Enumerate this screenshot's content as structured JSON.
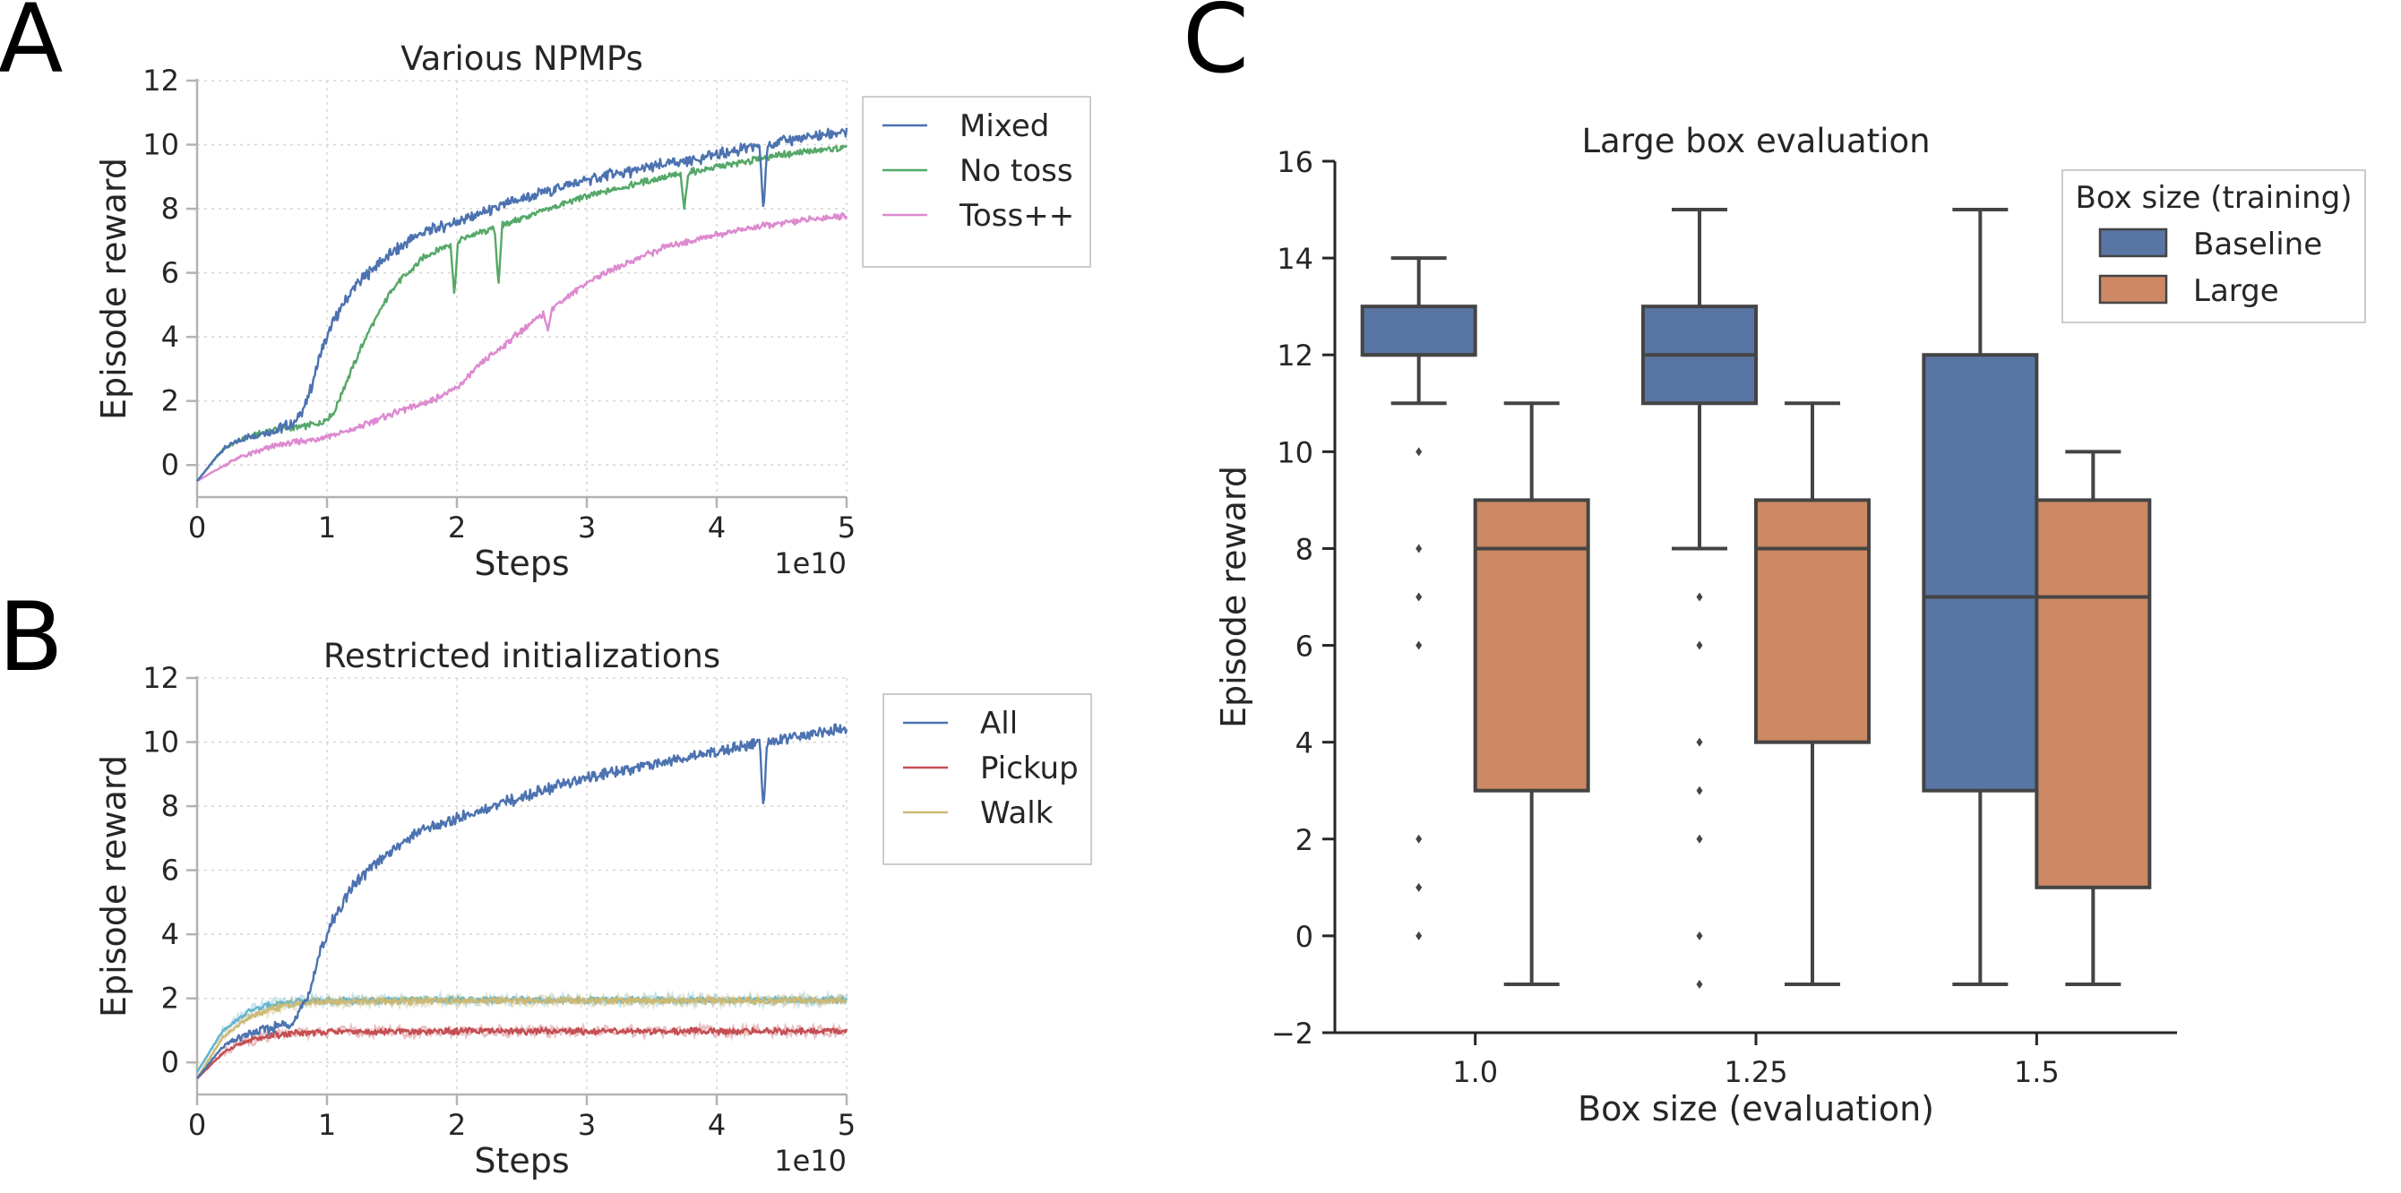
{
  "labels": {
    "A": "A",
    "B": "B",
    "C": "C"
  },
  "chart_data": [
    {
      "type": "line",
      "panel": "A",
      "title": "Various NPMPs",
      "xlabel": "Steps",
      "ylabel": "Episode reward",
      "x_offset_text": "1e10",
      "xlim": [
        0,
        5
      ],
      "ylim": [
        -1,
        12
      ],
      "xticks": [
        "0",
        "1",
        "2",
        "3",
        "4",
        "5"
      ],
      "yticks": [
        "0",
        "2",
        "4",
        "6",
        "8",
        "10",
        "12"
      ],
      "grid": true,
      "legend_position": "top-right",
      "series": [
        {
          "name": "Mixed",
          "color": "#4c72b0",
          "x": [
            0,
            0.2,
            0.4,
            0.6,
            0.75,
            0.85,
            0.95,
            1.05,
            1.2,
            1.4,
            1.7,
            2.0,
            2.5,
            3.0,
            3.5,
            4.0,
            4.5,
            5.0
          ],
          "y": [
            -0.5,
            0.5,
            0.9,
            1.1,
            1.3,
            2.0,
            3.5,
            4.5,
            5.5,
            6.3,
            7.2,
            7.6,
            8.3,
            8.9,
            9.3,
            9.7,
            10.1,
            10.4
          ],
          "dips": [
            {
              "x": 4.36,
              "y": 7.9
            }
          ]
        },
        {
          "name": "No toss",
          "color": "#55a868",
          "x": [
            0,
            0.2,
            0.4,
            0.6,
            0.8,
            0.95,
            1.05,
            1.15,
            1.3,
            1.5,
            1.75,
            2.0,
            2.5,
            3.0,
            3.5,
            4.0,
            4.5,
            5.0
          ],
          "y": [
            -0.5,
            0.5,
            0.9,
            1.1,
            1.2,
            1.3,
            1.6,
            2.6,
            4.0,
            5.5,
            6.5,
            7.0,
            7.7,
            8.4,
            8.9,
            9.3,
            9.7,
            9.9
          ],
          "dips": [
            {
              "x": 1.98,
              "y": 5.3
            },
            {
              "x": 2.32,
              "y": 5.6
            },
            {
              "x": 3.75,
              "y": 8.0
            }
          ]
        },
        {
          "name": "Toss++",
          "color": "#dd8ad0",
          "x": [
            0,
            0.3,
            0.6,
            0.9,
            1.2,
            1.5,
            1.8,
            2.0,
            2.2,
            2.5,
            2.8,
            3.0,
            3.3,
            3.6,
            4.0,
            4.4,
            4.8,
            5.0
          ],
          "y": [
            -0.5,
            0.2,
            0.6,
            0.8,
            1.1,
            1.6,
            2.0,
            2.4,
            3.2,
            4.2,
            5.1,
            5.7,
            6.3,
            6.8,
            7.2,
            7.5,
            7.7,
            7.8
          ],
          "dips": [
            {
              "x": 2.7,
              "y": 4.2
            }
          ]
        }
      ]
    },
    {
      "type": "line",
      "panel": "B",
      "title": "Restricted initializations",
      "xlabel": "Steps",
      "ylabel": "Episode reward",
      "x_offset_text": "1e10",
      "xlim": [
        0,
        5
      ],
      "ylim": [
        -1,
        12
      ],
      "xticks": [
        "0",
        "1",
        "2",
        "3",
        "4",
        "5"
      ],
      "yticks": [
        "0",
        "2",
        "4",
        "6",
        "8",
        "10",
        "12"
      ],
      "grid": true,
      "legend_position": "top-right",
      "series": [
        {
          "name": "All",
          "color": "#4c72b0",
          "x": [
            0,
            0.2,
            0.4,
            0.6,
            0.75,
            0.85,
            0.95,
            1.05,
            1.2,
            1.4,
            1.7,
            2.0,
            2.5,
            3.0,
            3.5,
            4.0,
            4.5,
            5.0
          ],
          "y": [
            -0.5,
            0.5,
            0.9,
            1.1,
            1.3,
            2.0,
            3.5,
            4.5,
            5.5,
            6.3,
            7.2,
            7.6,
            8.3,
            8.9,
            9.3,
            9.7,
            10.1,
            10.4
          ],
          "dips": [
            {
              "x": 4.36,
              "y": 7.9
            }
          ]
        },
        {
          "name": "Pickup",
          "color": "#c44e52",
          "x": [
            0,
            0.2,
            0.4,
            0.6,
            0.8,
            1.0,
            2.0,
            3.0,
            4.0,
            5.0
          ],
          "y": [
            -0.5,
            0.3,
            0.7,
            0.85,
            0.92,
            0.95,
            0.97,
            0.98,
            0.98,
            0.98
          ],
          "dips": []
        },
        {
          "name": "Walk",
          "color": "#ccb974",
          "x": [
            0,
            0.2,
            0.4,
            0.6,
            0.8,
            1.0,
            2.0,
            3.0,
            4.0,
            5.0
          ],
          "y": [
            -0.5,
            0.8,
            1.4,
            1.7,
            1.85,
            1.9,
            1.92,
            1.93,
            1.93,
            1.93
          ],
          "dips": []
        },
        {
          "name": "",
          "color": "#64b5cd",
          "x": [
            0,
            0.2,
            0.4,
            0.6,
            0.8,
            1.0,
            2.0,
            3.0,
            4.0,
            5.0
          ],
          "y": [
            -0.3,
            1.0,
            1.6,
            1.85,
            1.9,
            1.93,
            1.95,
            1.95,
            1.95,
            1.95
          ],
          "dips": []
        }
      ]
    },
    {
      "type": "box",
      "panel": "C",
      "title": "Large box evaluation",
      "xlabel": "Box size (evaluation)",
      "ylabel": "Episode reward",
      "ylim": [
        -2,
        16
      ],
      "yticks": [
        "−2",
        "0",
        "2",
        "4",
        "6",
        "8",
        "10",
        "12",
        "14",
        "16"
      ],
      "categories": [
        "1.0",
        "1.25",
        "1.5"
      ],
      "legend_title": "Box size (training)",
      "legend_position": "top-right",
      "series": [
        {
          "name": "Baseline",
          "color": "#5875a4",
          "boxes": [
            {
              "whislo": 11,
              "q1": 12,
              "med": 12,
              "q3": 13,
              "whishi": 14,
              "fliers": [
                10,
                8,
                7,
                6,
                2,
                1,
                0
              ]
            },
            {
              "whislo": 8,
              "q1": 11,
              "med": 12,
              "q3": 13,
              "whishi": 15,
              "fliers": [
                7,
                6,
                4,
                3,
                2,
                0,
                -1
              ]
            },
            {
              "whislo": -1,
              "q1": 3,
              "med": 7,
              "q3": 12,
              "whishi": 15,
              "fliers": []
            }
          ]
        },
        {
          "name": "Large",
          "color": "#cc8963",
          "boxes": [
            {
              "whislo": -1,
              "q1": 3,
              "med": 8,
              "q3": 9,
              "whishi": 11,
              "fliers": []
            },
            {
              "whislo": -1,
              "q1": 4,
              "med": 8,
              "q3": 9,
              "whishi": 11,
              "fliers": []
            },
            {
              "whislo": -1,
              "q1": 1,
              "med": 7,
              "q3": 9,
              "whishi": 10,
              "fliers": []
            }
          ]
        }
      ]
    }
  ]
}
